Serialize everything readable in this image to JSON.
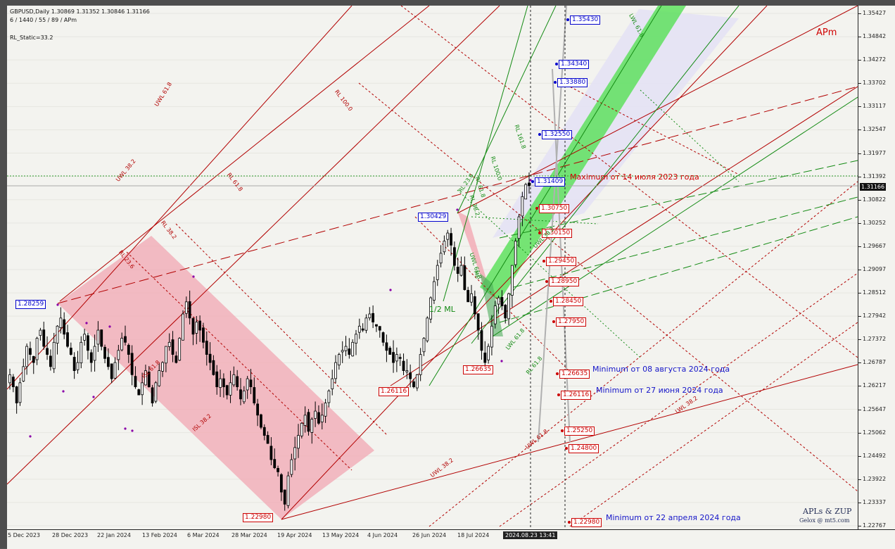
{
  "header": {
    "symbol": "GBPUSD,Daily  1.30869 1.31352 1.30846 1.31166",
    "params": "6 / 1440 / 55 / 89 / APm",
    "indicator": "RL_Static=33.2"
  },
  "watermark": "APm",
  "branding": {
    "line1": "APLs & ZUP",
    "line2": "Gelox @ mt5.com"
  },
  "price_axis": {
    "ticks": [
      "1.35427",
      "1.34842",
      "1.34272",
      "1.33702",
      "1.33117",
      "1.32547",
      "1.31977",
      "1.31392",
      "1.30822",
      "1.30252",
      "1.29667",
      "1.29097",
      "1.28512",
      "1.27942",
      "1.27372",
      "1.26787",
      "1.26217",
      "1.25647",
      "1.25062",
      "1.24492",
      "1.23922",
      "1.23337",
      "1.22767"
    ],
    "current_price": "1.31166"
  },
  "time_axis": {
    "ticks": [
      "5 Dec 2023",
      "28 Dec 2023",
      "22 Jan 2024",
      "13 Feb 2024",
      "6 Mar 2024",
      "28 Mar 2024",
      "19 Apr 2024",
      "13 May 2024",
      "4 Jun 2024",
      "26 Jun 2024",
      "18 Jul 2024"
    ],
    "cursor": "2024.08.23 13:41"
  },
  "level_tags": [
    {
      "text": "1.35430",
      "color": "blue"
    },
    {
      "text": "1.34340",
      "color": "blue"
    },
    {
      "text": "1.33880",
      "color": "blue"
    },
    {
      "text": "1.32550",
      "color": "blue"
    },
    {
      "text": "1.31409",
      "color": "blue"
    },
    {
      "text": "1.30750",
      "color": "red"
    },
    {
      "text": "1.30150",
      "color": "red"
    },
    {
      "text": "1.29450",
      "color": "red"
    },
    {
      "text": "1.28950",
      "color": "red"
    },
    {
      "text": "1.28450",
      "color": "red"
    },
    {
      "text": "1.27950",
      "color": "red"
    },
    {
      "text": "1.26635",
      "color": "red"
    },
    {
      "text": "1.26116",
      "color": "red"
    },
    {
      "text": "1.25250",
      "color": "red"
    },
    {
      "text": "1.24800",
      "color": "red"
    },
    {
      "text": "1.22980",
      "color": "red"
    }
  ],
  "pivot_tags": [
    {
      "text": "1.28259",
      "color": "blue"
    },
    {
      "text": "1.30429",
      "color": "blue"
    },
    {
      "text": "1.26635",
      "color": "red"
    },
    {
      "text": "1.26116",
      "color": "red"
    },
    {
      "text": "1.22980",
      "color": "red"
    }
  ],
  "notes": {
    "max_2023": "Maximum от 14 июля 2023 года",
    "min_aug": "Minimum от 08 августа 2024 года",
    "min_jun": "Minimum от 27 июня 2024 года",
    "min_apr": "Minimum от 22 апреля 2024 года"
  },
  "fib_labels": [
    "UWL 61.8",
    "UWL 38.2",
    "RL 100.0",
    "RL 61.8",
    "RL 38.2",
    "RL 23.6",
    "ISL 61.8",
    "ISL 38.2",
    "UWL 38.2",
    "UWL 61.8",
    "LWL 38.2",
    "LWL 61.8",
    "1/2 ML",
    "RL 161.8",
    "RL 100.0",
    "RL 61.8",
    "RL 38.2",
    "RL 23.6",
    "UWL 61.8",
    "ML",
    "LWL 61.8",
    "UWL 38.2",
    "RL 61.8"
  ],
  "colors": {
    "background": "#f3f3ef",
    "candle": "#000000",
    "pink_channel": "#f2a7b3",
    "green_channel": "#5ee05e",
    "lavender_channel": "#e4e2f4",
    "pitchfork_red": "#b20000",
    "pitchfork_green": "#138a13",
    "blue_tag": "#0000cc",
    "red_tag": "#cc0000"
  },
  "chart_data": {
    "type": "candlestick",
    "symbol": "GBPUSD",
    "timeframe": "Daily",
    "last_bar": {
      "open": 1.30869,
      "high": 1.31352,
      "low": 1.30846,
      "close": 1.31166
    },
    "ylim": [
      1.227,
      1.3565
    ],
    "closes": [
      1.265,
      1.262,
      1.258,
      1.263,
      1.267,
      1.272,
      1.27,
      1.268,
      1.274,
      1.276,
      1.272,
      1.27,
      1.267,
      1.273,
      1.277,
      1.279,
      1.275,
      1.272,
      1.27,
      1.266,
      1.268,
      1.273,
      1.275,
      1.271,
      1.268,
      1.272,
      1.276,
      1.272,
      1.269,
      1.267,
      1.264,
      1.268,
      1.271,
      1.274,
      1.273,
      1.27,
      1.265,
      1.262,
      1.26,
      1.263,
      1.266,
      1.262,
      1.258,
      1.263,
      1.266,
      1.268,
      1.272,
      1.273,
      1.27,
      1.268,
      1.274,
      1.28,
      1.283,
      1.279,
      1.275,
      1.278,
      1.276,
      1.273,
      1.27,
      1.268,
      1.265,
      1.262,
      1.264,
      1.262,
      1.26,
      1.263,
      1.265,
      1.262,
      1.259,
      1.261,
      1.264,
      1.262,
      1.258,
      1.255,
      1.252,
      1.25,
      1.248,
      1.244,
      1.242,
      1.241,
      1.236,
      1.233,
      1.24,
      1.244,
      1.247,
      1.25,
      1.253,
      1.255,
      1.251,
      1.254,
      1.256,
      1.253,
      1.255,
      1.258,
      1.261,
      1.264,
      1.268,
      1.27,
      1.271,
      1.272,
      1.27,
      1.273,
      1.275,
      1.277,
      1.276,
      1.279,
      1.28,
      1.278,
      1.277,
      1.276,
      1.273,
      1.271,
      1.27,
      1.268,
      1.27,
      1.269,
      1.266,
      1.266,
      1.264,
      1.262,
      1.265,
      1.27,
      1.274,
      1.279,
      1.284,
      1.288,
      1.292,
      1.295,
      1.298,
      1.3,
      1.297,
      1.292,
      1.29,
      1.292,
      1.286,
      1.283,
      1.285,
      1.28,
      1.276,
      1.271,
      1.268,
      1.272,
      1.277,
      1.282,
      1.284,
      1.282,
      1.279,
      1.285,
      1.292,
      1.298,
      1.304,
      1.309,
      1.312,
      1.3117
    ],
    "markers": [
      {
        "label": "Maximum от 14 июля 2023 года",
        "price": 1.31409
      },
      {
        "label": "Minimum от 08 августа 2024 года",
        "price": 1.26635
      },
      {
        "label": "Minimum от 27 июня 2024 года",
        "price": 1.26116
      },
      {
        "label": "Minimum от 22 апреля 2024 года",
        "price": 1.2298
      }
    ],
    "levels": [
      1.3543,
      1.3434,
      1.3388,
      1.3255,
      1.31409,
      1.3075,
      1.3015,
      1.2945,
      1.2895,
      1.2845,
      1.2795,
      1.26635,
      1.26116,
      1.2525,
      1.248,
      1.2298
    ]
  }
}
